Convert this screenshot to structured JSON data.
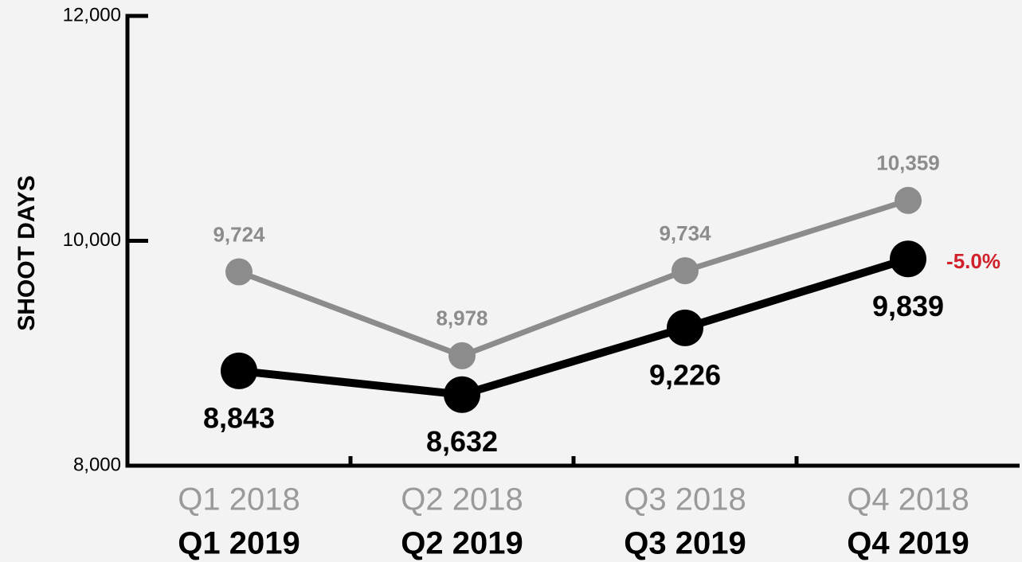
{
  "chart_data": {
    "type": "line",
    "y_label": "SHOOT DAYS",
    "ylim": [
      8000,
      12000
    ],
    "yticks": [
      {
        "value": 8000,
        "label": "8,000"
      },
      {
        "value": 10000,
        "label": "10,000"
      },
      {
        "value": 12000,
        "label": "12,000"
      }
    ],
    "series": [
      {
        "color": "#8c8c8c",
        "labels": [
          "Q1 2018",
          "Q2 2018",
          "Q3 2018",
          "Q4 2018"
        ],
        "values": [
          9724,
          8978,
          9734,
          10359
        ],
        "value_labels": [
          "9,724",
          "8,978",
          "9,734",
          "10,359"
        ]
      },
      {
        "color": "#000000",
        "labels": [
          "Q1 2019",
          "Q2 2019",
          "Q3 2019",
          "Q4 2019"
        ],
        "values": [
          8843,
          8632,
          9226,
          9839
        ],
        "value_labels": [
          "8,843",
          "8,632",
          "9,226",
          "9,839"
        ]
      }
    ],
    "annotation": "-5.0%",
    "annotation_color": "#d0202a"
  }
}
